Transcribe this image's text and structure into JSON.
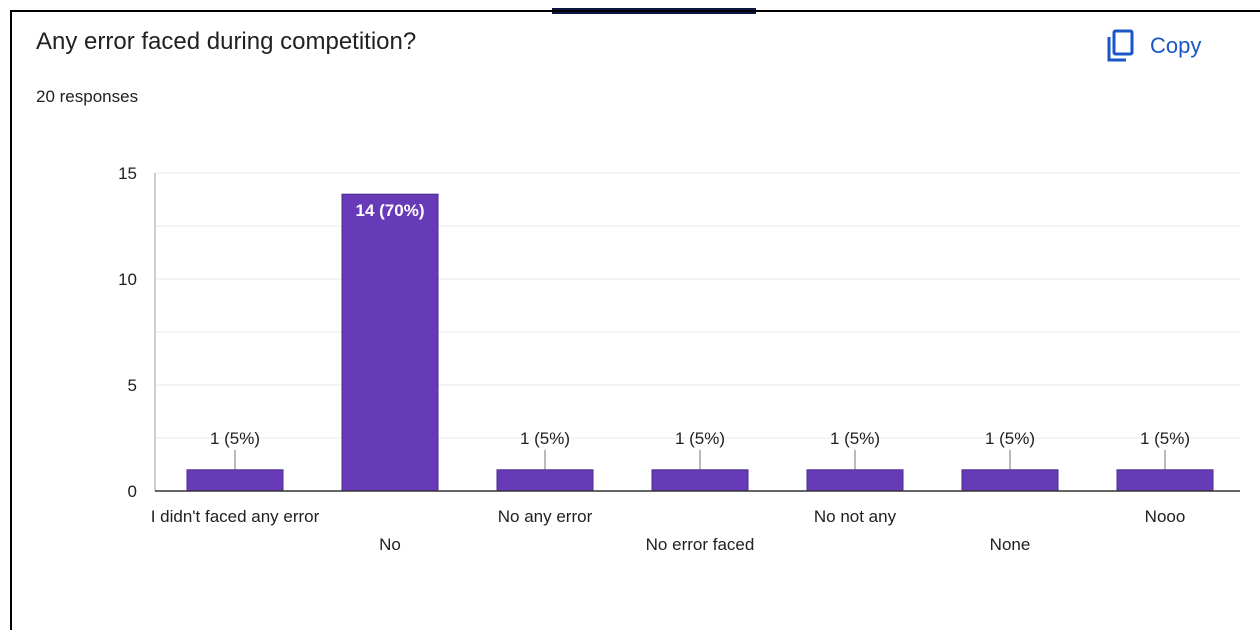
{
  "question": {
    "title": "Any error faced during competition?",
    "responses": "20 responses"
  },
  "copy_button": {
    "label": "Copy",
    "icon": "copy-icon"
  },
  "colors": {
    "bar": "#673ab7",
    "bar_border": "#4a2a8f",
    "accent": "#1a56c8",
    "grid": "#e8e8e8"
  },
  "chart_data": {
    "type": "bar",
    "categories": [
      "I didn't faced any error",
      "No",
      "No any error",
      "No error faced",
      "No not any",
      "None",
      "Nooo"
    ],
    "values": [
      1,
      14,
      1,
      1,
      1,
      1,
      1
    ],
    "data_labels": [
      "1 (5%)",
      "14 (70%)",
      "1 (5%)",
      "1 (5%)",
      "1 (5%)",
      "1 (5%)",
      "1 (5%)"
    ],
    "yticks": [
      0,
      5,
      10,
      15
    ],
    "ylim": [
      0,
      15
    ],
    "grid": true,
    "legend": "none"
  }
}
